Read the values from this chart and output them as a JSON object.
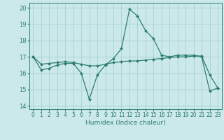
{
  "xlabel": "Humidex (Indice chaleur)",
  "background_color": "#cce9e9",
  "grid_color": "#aad4d4",
  "line_color": "#2e7d6e",
  "marker_color": "#2e7d6e",
  "xlim": [
    -0.5,
    23.5
  ],
  "ylim": [
    13.8,
    20.3
  ],
  "yticks": [
    14,
    15,
    16,
    17,
    18,
    19,
    20
  ],
  "xticks": [
    0,
    1,
    2,
    3,
    4,
    5,
    6,
    7,
    8,
    9,
    10,
    11,
    12,
    13,
    14,
    15,
    16,
    17,
    18,
    19,
    20,
    21,
    22,
    23
  ],
  "series": [
    {
      "x": [
        0,
        1,
        2,
        3,
        4,
        5,
        6,
        7,
        8,
        9,
        10,
        11,
        12,
        13,
        14,
        15,
        16,
        17,
        18,
        19,
        20,
        21,
        22,
        23
      ],
      "y": [
        17.0,
        16.2,
        16.3,
        16.5,
        16.6,
        16.6,
        16.0,
        14.4,
        15.9,
        16.5,
        16.9,
        17.5,
        19.9,
        19.5,
        18.6,
        18.1,
        17.1,
        17.0,
        17.1,
        17.1,
        17.1,
        17.0,
        14.9,
        15.1
      ]
    },
    {
      "x": [
        0,
        1,
        2,
        3,
        4,
        5,
        6,
        7,
        8,
        9,
        10,
        11,
        12,
        13,
        14,
        15,
        16,
        17,
        18,
        19,
        20,
        21,
        22,
        23
      ],
      "y": [
        17.0,
        16.55,
        16.6,
        16.65,
        16.7,
        16.65,
        16.55,
        16.45,
        16.45,
        16.55,
        16.65,
        16.7,
        16.75,
        16.75,
        16.8,
        16.85,
        16.9,
        16.95,
        17.0,
        17.0,
        17.05,
        17.05,
        15.9,
        15.1
      ]
    }
  ]
}
